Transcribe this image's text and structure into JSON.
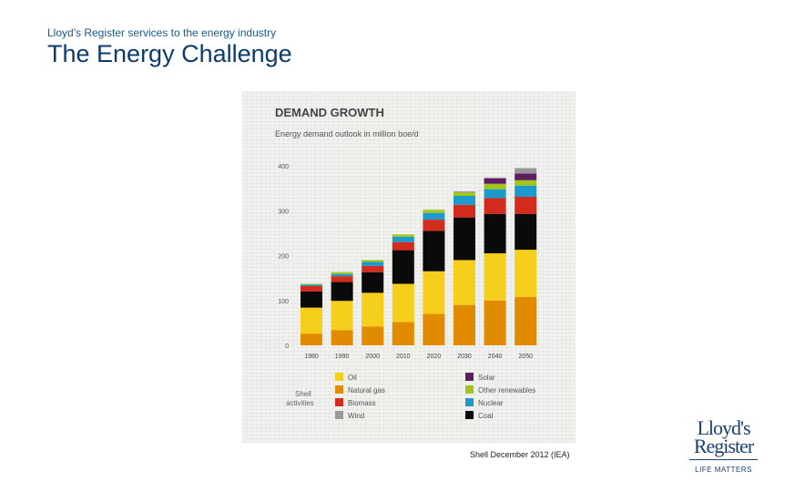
{
  "header": {
    "subtitle": "Lloyd's Register services to the energy industry",
    "title": "The Energy Challenge"
  },
  "footer": {
    "credit": "Shell December 2012 (IEA)",
    "logo_line1": "Lloyd's",
    "logo_line2": "Register",
    "logo_tagline": "LIFE MATTERS",
    "logo_color": "#1b3f6e"
  },
  "chart_data": {
    "type": "bar",
    "stacked": true,
    "title": "DEMAND GROWTH",
    "subtitle": "Energy demand outlook in million boe/d",
    "xlabel": "",
    "ylabel": "",
    "ylim": [
      0,
      400
    ],
    "yticks": [
      0,
      100,
      200,
      300,
      400
    ],
    "categories": [
      "1980",
      "1990",
      "2000",
      "2010",
      "2020",
      "2030",
      "2040",
      "2050"
    ],
    "series": [
      {
        "name": "Oil",
        "color": "#f5cf1c",
        "values": [
          58,
          65,
          75,
          85,
          95,
          100,
          105,
          105
        ]
      },
      {
        "name": "Natural gas",
        "color": "#e08b00",
        "values": [
          26,
          34,
          42,
          52,
          70,
          90,
          100,
          108
        ]
      },
      {
        "name": "Biomass",
        "color": "#d52b1e",
        "values": [
          12,
          13,
          14,
          18,
          25,
          28,
          35,
          38
        ]
      },
      {
        "name": "Wind",
        "color": "#999999",
        "values": [
          0,
          0,
          0,
          0,
          0,
          0,
          2,
          12
        ]
      },
      {
        "name": "Solar",
        "color": "#5e1d62",
        "values": [
          0,
          0,
          0,
          0,
          0,
          1,
          12,
          15
        ]
      },
      {
        "name": "Other renewables",
        "color": "#a2c617",
        "values": [
          2,
          4,
          4,
          5,
          7,
          8,
          12,
          12
        ]
      },
      {
        "name": "Nuclear",
        "color": "#1b9bcb",
        "values": [
          3,
          5,
          9,
          12,
          15,
          20,
          20,
          25
        ]
      },
      {
        "name": "Coal",
        "color": "#0a0a0a",
        "values": [
          36,
          42,
          46,
          75,
          90,
          95,
          88,
          80
        ]
      }
    ],
    "stack_order": [
      "Natural gas",
      "Oil",
      "Coal",
      "Biomass",
      "Nuclear",
      "Other renewables",
      "Solar",
      "Wind"
    ],
    "legend_left": [
      "Oil",
      "Natural gas",
      "Biomass",
      "Wind"
    ],
    "legend_right": [
      "Solar",
      "Other renewables",
      "Nuclear",
      "Coal"
    ],
    "legend_group_label": "Shell activities",
    "legend_position": "bottom"
  }
}
